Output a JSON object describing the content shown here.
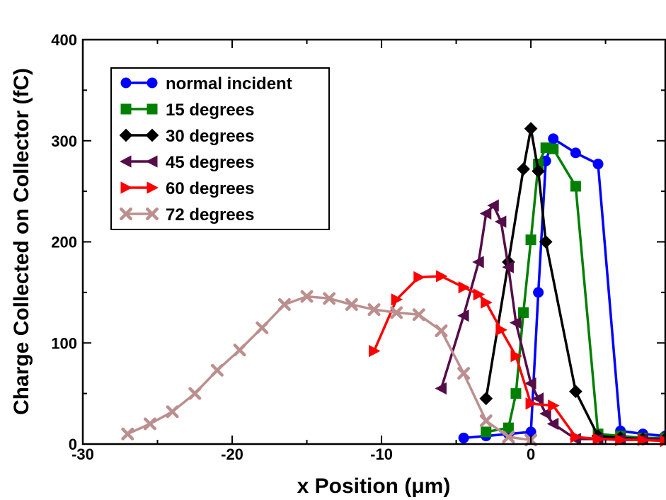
{
  "chart_data": {
    "type": "line",
    "xlabel": "x Position (μm)",
    "ylabel": "Charge Collected on Collector (fC)",
    "xlim": [
      -30,
      9
    ],
    "ylim": [
      0,
      400
    ],
    "xticks": [
      -30,
      -20,
      -10,
      0
    ],
    "xtick_labels": [
      "-30",
      "-20",
      "-10",
      "0"
    ],
    "yticks": [
      0,
      100,
      200,
      300,
      400
    ],
    "ytick_labels": [
      "0",
      "100",
      "200",
      "300",
      "400"
    ],
    "grid": false,
    "legend_position": "top-left",
    "series": [
      {
        "name": "normal incident",
        "color": "#0000ff",
        "marker": "circle",
        "x": [
          -4.5,
          -3,
          -1.5,
          0,
          0.5,
          1,
          1.5,
          3,
          4.5,
          6,
          7.5,
          9
        ],
        "y": [
          6,
          8,
          10,
          12,
          150,
          280,
          302,
          288,
          277,
          13,
          10,
          8
        ]
      },
      {
        "name": "15 degrees",
        "color": "#008000",
        "marker": "square",
        "x": [
          -3,
          -1.5,
          -1,
          -0.5,
          0,
          0.5,
          1,
          1.5,
          3,
          4.5,
          6,
          7.5,
          9
        ],
        "y": [
          12,
          16,
          50,
          130,
          202,
          277,
          293,
          292,
          255,
          10,
          8,
          6,
          6
        ]
      },
      {
        "name": "30 degrees",
        "color": "#000000",
        "marker": "diamond",
        "x": [
          -3,
          -1.5,
          -0.5,
          0,
          0.5,
          1,
          3,
          4.5,
          6,
          7.5,
          9
        ],
        "y": [
          45,
          180,
          272,
          312,
          270,
          200,
          52,
          8,
          6,
          5,
          5
        ]
      },
      {
        "name": "45 degrees",
        "color": "#550d4a",
        "marker": "triangle-left",
        "x": [
          -6,
          -4.5,
          -3.5,
          -3,
          -2.5,
          -2,
          -1.5,
          -1,
          0,
          0.5,
          1,
          1.5,
          3,
          4.5,
          6,
          7.5,
          9
        ],
        "y": [
          55,
          127,
          180,
          228,
          236,
          220,
          175,
          120,
          60,
          45,
          30,
          20,
          5,
          5,
          5,
          5,
          5
        ]
      },
      {
        "name": "60 degrees",
        "color": "#ff0000",
        "marker": "triangle-right",
        "x": [
          -10.5,
          -9,
          -7.5,
          -6,
          -4.5,
          -3.5,
          -3,
          -2,
          -1,
          0,
          1.5,
          3,
          4.5,
          6,
          7.5,
          9
        ],
        "y": [
          92,
          143,
          165,
          166,
          155,
          148,
          140,
          113,
          87,
          40,
          38,
          7,
          5,
          4,
          4,
          3
        ]
      },
      {
        "name": "72 degrees",
        "color": "#bc8f8f",
        "marker": "x",
        "x": [
          -27,
          -25.5,
          -24,
          -22.5,
          -21,
          -19.5,
          -18,
          -16.5,
          -15,
          -13.5,
          -12,
          -10.5,
          -9,
          -7.5,
          -6,
          -4.5,
          -3,
          -1.5,
          0
        ],
        "y": [
          10,
          20,
          32,
          50,
          73,
          93,
          115,
          138,
          146,
          144,
          138,
          133,
          130,
          128,
          112,
          70,
          23,
          7,
          4
        ]
      }
    ]
  }
}
